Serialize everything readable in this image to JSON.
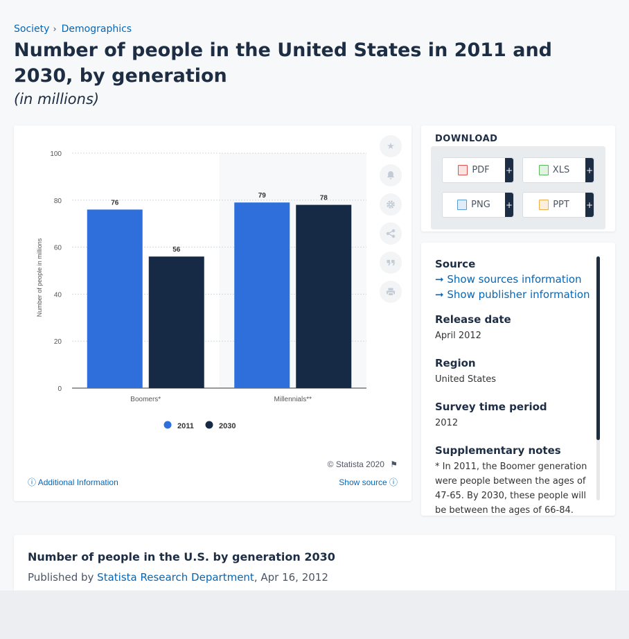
{
  "breadcrumb": {
    "items": [
      "Society",
      "Demographics"
    ],
    "separator": "›"
  },
  "page_title": "Number of people in the United States in 2011 and 2030, by generation",
  "page_subtitle": "(in millions)",
  "chart_data": {
    "type": "bar",
    "categories": [
      "Boomers*",
      "Millennials**"
    ],
    "series": [
      {
        "name": "2011",
        "values": [
          76,
          79
        ],
        "color": "#2f6fdc"
      },
      {
        "name": "2030",
        "values": [
          56,
          78
        ],
        "color": "#162a45"
      }
    ],
    "title": "",
    "xlabel": "",
    "ylabel": "Number of people in millions",
    "ylim": [
      0,
      100
    ],
    "yticks": [
      0,
      20,
      40,
      60,
      80,
      100
    ],
    "grid": true,
    "legend": "bottom",
    "data_labels": true
  },
  "chart_footer": {
    "copyright": "© Statista 2020",
    "additional_info": "Additional Information",
    "show_source": "Show source"
  },
  "download": {
    "title": "DOWNLOAD",
    "buttons": [
      {
        "label": "PDF",
        "icon": "pdf-file-icon",
        "color": "#d9534f"
      },
      {
        "label": "XLS",
        "icon": "xls-file-icon",
        "color": "#5cb85c"
      },
      {
        "label": "PNG",
        "icon": "png-file-icon",
        "color": "#5b9bd5"
      },
      {
        "label": "PPT",
        "icon": "ppt-file-icon",
        "color": "#f0ad4e"
      }
    ],
    "plus": "+"
  },
  "info": {
    "source_heading": "Source",
    "sources_link": "Show sources information",
    "publisher_link": "Show publisher information",
    "release_heading": "Release date",
    "release_value": "April 2012",
    "region_heading": "Region",
    "region_value": "United States",
    "period_heading": "Survey time period",
    "period_value": "2012",
    "notes_heading": "Supplementary notes",
    "notes_value": "* In 2011, the Boomer generation were people between the ages of 47-65. By 2030, these people will be between the ages of 66-84."
  },
  "publication": {
    "title": "Number of people in the U.S. by generation 2030",
    "published_by_prefix": "Published by",
    "publisher": "Statista Research Department",
    "date": ", Apr 16, 2012"
  }
}
